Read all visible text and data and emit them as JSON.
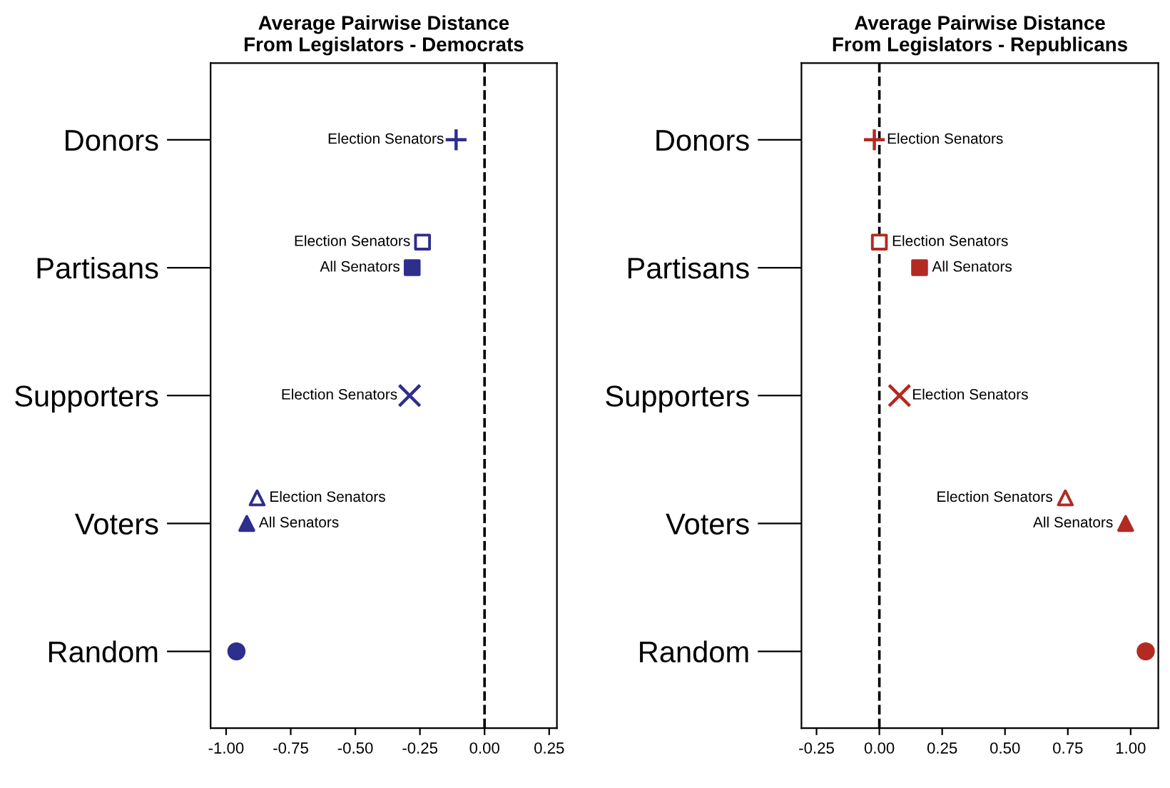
{
  "chart_data": [
    {
      "type": "scatter",
      "orientation": "horizontal",
      "title": "Average Pairwise Distance\nFrom Legislators - Democrats",
      "categories": [
        "Donors",
        "Partisans",
        "Supporters",
        "Voters",
        "Random"
      ],
      "series": [
        {
          "name": "Election Senators",
          "color": "#2e2e8c",
          "values": [
            -0.11,
            -0.24,
            -0.29,
            -0.88,
            null
          ]
        },
        {
          "name": "All Senators",
          "color": "#2e2e8c",
          "values": [
            null,
            -0.28,
            null,
            -0.92,
            null
          ]
        },
        {
          "color": "#2e2e8c",
          "values": [
            null,
            null,
            null,
            null,
            -0.96
          ]
        }
      ],
      "xlim": [
        -1.06,
        0.28
      ],
      "xticks": [
        {
          "value": -1,
          "label": "-1.00"
        },
        {
          "value": -0.75,
          "label": "-0.75"
        },
        {
          "value": -0.5,
          "label": "-0.50"
        },
        {
          "value": -0.25,
          "label": "-0.25"
        },
        {
          "value": 0,
          "label": "0.00"
        },
        {
          "value": 0.25,
          "label": "0.25"
        }
      ],
      "ref_lines": [
        {
          "axis": "x",
          "value": 0,
          "line_style": "dashed",
          "color": "#000000"
        }
      ],
      "grid": false,
      "legend": false
    },
    {
      "type": "scatter",
      "orientation": "horizontal",
      "title": "Average Pairwise Distance\nFrom Legislators - Republicans",
      "categories": [
        "Donors",
        "Partisans",
        "Supporters",
        "Voters",
        "Random"
      ],
      "series": [
        {
          "name": "Election Senators",
          "color": "#b22a22",
          "values": [
            -0.02,
            0.0,
            0.08,
            0.74,
            null
          ]
        },
        {
          "name": "All Senators",
          "color": "#b22a22",
          "values": [
            null,
            0.16,
            null,
            0.98,
            null
          ]
        },
        {
          "color": "#b22a22",
          "values": [
            null,
            null,
            null,
            null,
            1.06
          ]
        }
      ],
      "xlim": [
        -0.31,
        1.11
      ],
      "xticks": [
        {
          "value": -0.25,
          "label": "-0.25"
        },
        {
          "value": 0,
          "label": "0.00"
        },
        {
          "value": 0.25,
          "label": "0.25"
        },
        {
          "value": 0.5,
          "label": "0.50"
        },
        {
          "value": 0.75,
          "label": "0.75"
        },
        {
          "value": 1,
          "label": "1.00"
        }
      ],
      "ref_lines": [
        {
          "axis": "x",
          "value": 0,
          "line_style": "dashed",
          "color": "#000000"
        }
      ],
      "grid": false,
      "legend": false
    }
  ]
}
